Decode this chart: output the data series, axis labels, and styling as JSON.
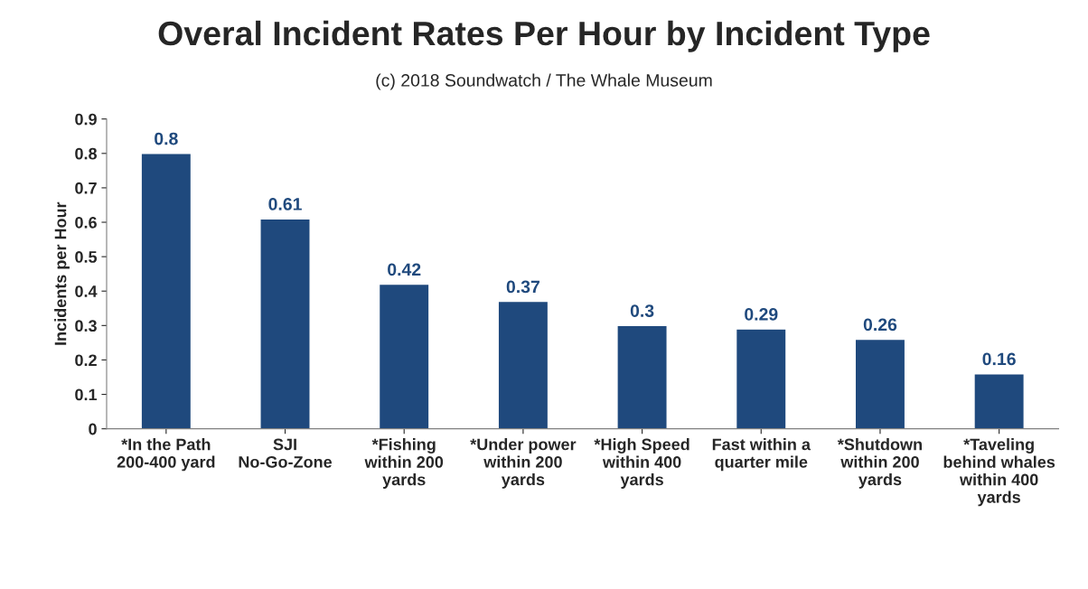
{
  "chart_data": {
    "type": "bar",
    "title": "Overal Incident Rates Per Hour by Incident Type",
    "subtitle": "(c) 2018 Soundwatch / The Whale Museum",
    "ylabel": "Incidents per Hour",
    "categories": [
      "*In the Path 200-400 yard",
      "SJI No-Go-Zone",
      "*Fishing within 200 yards",
      "*Under power within 200 yards",
      "*High Speed within 400 yards",
      "Fast within a quarter mile",
      "*Shutdown within 200 yards",
      "*Taveling behind whales within 400 yards"
    ],
    "values": [
      0.8,
      0.61,
      0.42,
      0.37,
      0.3,
      0.29,
      0.26,
      0.16
    ],
    "color": "#1f497d",
    "ylim": [
      0,
      0.9
    ],
    "yticks": [
      0,
      0.1,
      0.2,
      0.3,
      0.4,
      0.5,
      0.6,
      0.7,
      0.8,
      0.9
    ],
    "grid": false,
    "legend": false,
    "data_labels": true
  }
}
